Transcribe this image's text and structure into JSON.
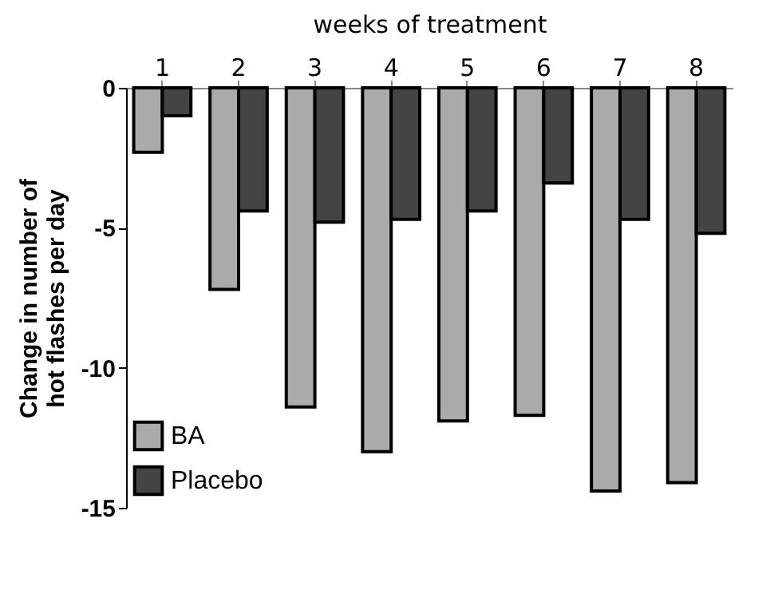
{
  "chart_data": {
    "type": "bar",
    "xlabel": "weeks of treatment",
    "ylabel": "Change in number of\nhot flashes per day",
    "categories": [
      "1",
      "2",
      "3",
      "4",
      "5",
      "6",
      "7",
      "8"
    ],
    "series": [
      {
        "name": "BA",
        "color": "#aaaaaa",
        "values": [
          -2.3,
          -7.2,
          -11.4,
          -13.0,
          -11.9,
          -11.7,
          -14.4,
          -14.1
        ]
      },
      {
        "name": "Placebo",
        "color": "#444444",
        "values": [
          -1.0,
          -4.4,
          -4.8,
          -4.7,
          -4.4,
          -3.4,
          -4.7,
          -5.2
        ]
      }
    ],
    "ylim": [
      -15,
      0
    ],
    "yticks": [
      0,
      -5,
      -10,
      -15
    ],
    "grid": false,
    "legend": "bottom left"
  }
}
